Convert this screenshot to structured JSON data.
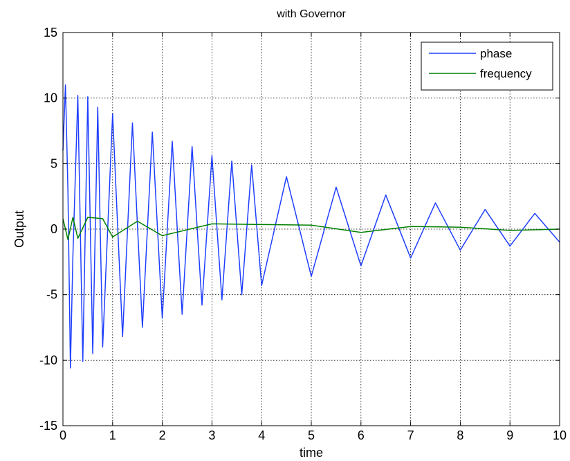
{
  "chart_data": {
    "type": "line",
    "title": "with Governor",
    "xlabel": "time",
    "ylabel": "Output",
    "xlim": [
      0,
      10
    ],
    "ylim": [
      -15,
      15
    ],
    "xticks": [
      "0",
      "1",
      "2",
      "3",
      "4",
      "5",
      "6",
      "7",
      "8",
      "9",
      "10"
    ],
    "yticks": [
      "15",
      "10",
      "5",
      "0",
      "-5",
      "-10",
      "-15"
    ],
    "grid": true,
    "legend": {
      "placement": "top-right"
    },
    "series": [
      {
        "name": "phase",
        "color": "#1f3fff",
        "x": [
          0,
          0.05,
          0.1,
          0.15,
          0.2,
          0.3,
          0.4,
          0.5,
          0.6,
          0.7,
          0.8,
          1.0,
          1.2,
          1.4,
          1.6,
          1.8,
          2.0,
          2.2,
          2.4,
          2.6,
          2.8,
          3.0,
          3.2,
          3.4,
          3.6,
          3.8,
          4.0,
          4.5,
          5.0,
          5.5,
          6.0,
          6.5,
          7.0,
          7.5,
          8.0,
          8.5,
          9.0,
          9.5,
          10.0
        ],
        "y": [
          6,
          11,
          3,
          -10.6,
          -2,
          10.2,
          -10.1,
          10.1,
          -9.5,
          9.3,
          -9.0,
          8.8,
          -8.2,
          8.1,
          -7.5,
          7.4,
          -6.8,
          6.7,
          -6.5,
          6.3,
          -5.8,
          5.6,
          -5.4,
          5.2,
          -5.0,
          4.9,
          -4.3,
          4.0,
          -3.6,
          3.2,
          -2.8,
          2.6,
          -2.2,
          2.0,
          -1.6,
          1.5,
          -1.3,
          1.2,
          -1.0
        ]
      },
      {
        "name": "frequency",
        "color": "#008000",
        "x": [
          0,
          0.1,
          0.2,
          0.3,
          0.5,
          0.8,
          1.0,
          1.5,
          2.0,
          3.0,
          4.0,
          5.0,
          6.0,
          7.0,
          8.0,
          9.0,
          10.0
        ],
        "y": [
          0.8,
          -0.8,
          0.9,
          -0.7,
          0.9,
          0.8,
          -0.6,
          0.6,
          -0.5,
          0.4,
          0.35,
          0.3,
          -0.25,
          0.2,
          0.15,
          -0.1,
          0.0
        ]
      }
    ]
  }
}
